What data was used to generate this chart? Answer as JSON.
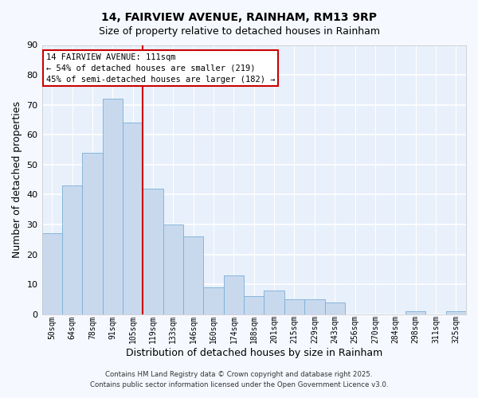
{
  "title": "14, FAIRVIEW AVENUE, RAINHAM, RM13 9RP",
  "subtitle": "Size of property relative to detached houses in Rainham",
  "xlabel": "Distribution of detached houses by size in Rainham",
  "ylabel": "Number of detached properties",
  "bar_color": "#c8d9ee",
  "bar_edge_color": "#7aaed4",
  "categories": [
    "50sqm",
    "64sqm",
    "78sqm",
    "91sqm",
    "105sqm",
    "119sqm",
    "133sqm",
    "146sqm",
    "160sqm",
    "174sqm",
    "188sqm",
    "201sqm",
    "215sqm",
    "229sqm",
    "243sqm",
    "256sqm",
    "270sqm",
    "284sqm",
    "298sqm",
    "311sqm",
    "325sqm"
  ],
  "values": [
    27,
    43,
    54,
    72,
    64,
    42,
    30,
    26,
    9,
    13,
    6,
    8,
    5,
    5,
    4,
    0,
    0,
    0,
    1,
    0,
    1
  ],
  "ylim": [
    0,
    90
  ],
  "yticks": [
    0,
    10,
    20,
    30,
    40,
    50,
    60,
    70,
    80,
    90
  ],
  "vline_x_index": 4.5,
  "vline_color": "#cc0000",
  "annotation_title": "14 FAIRVIEW AVENUE: 111sqm",
  "annotation_line1": "← 54% of detached houses are smaller (219)",
  "annotation_line2": "45% of semi-detached houses are larger (182) →",
  "annotation_box_color": "#ffffff",
  "annotation_box_edge_color": "#cc0000",
  "footnote1": "Contains HM Land Registry data © Crown copyright and database right 2025.",
  "footnote2": "Contains public sector information licensed under the Open Government Licence v3.0.",
  "plot_bg_color": "#e8f0fb",
  "fig_bg_color": "#f5f8ff",
  "grid_color": "#ffffff",
  "spine_color": "#cccccc"
}
